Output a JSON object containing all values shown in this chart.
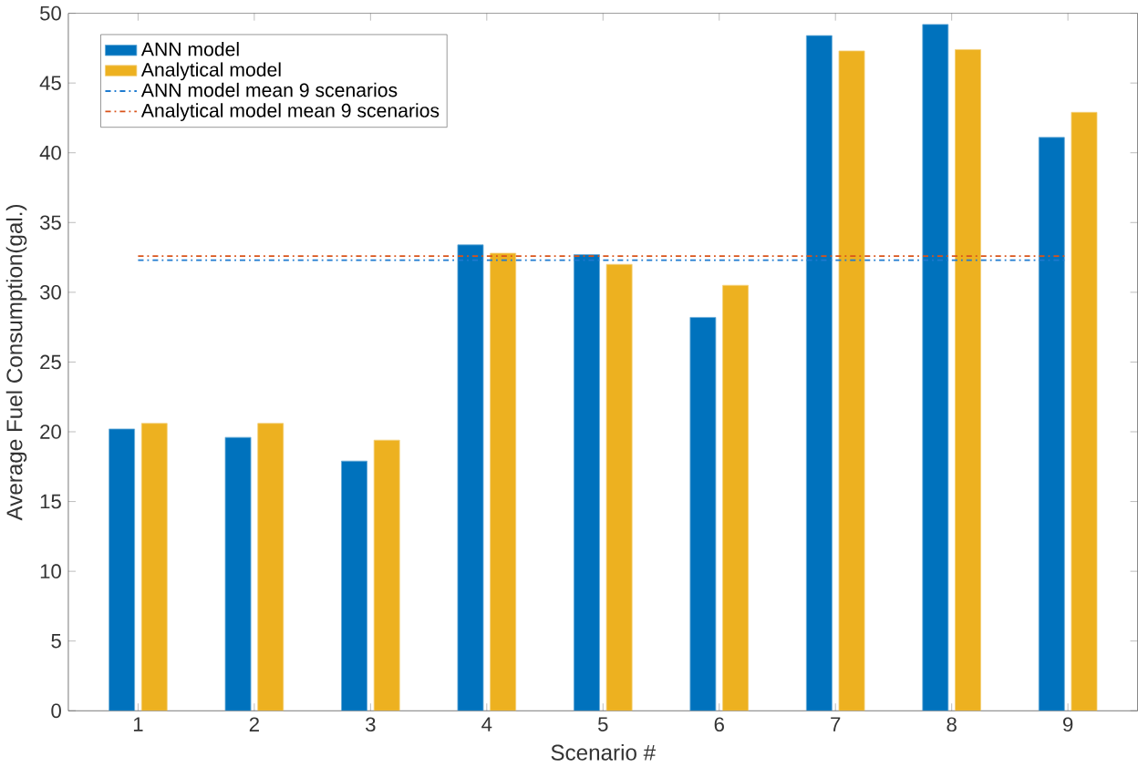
{
  "chart_data": {
    "type": "bar",
    "xlabel": "Scenario #",
    "ylabel": "Average Fuel Consumption(gal.)",
    "categories": [
      "1",
      "2",
      "3",
      "4",
      "5",
      "6",
      "7",
      "8",
      "9"
    ],
    "series": [
      {
        "name": "ANN model",
        "color": "#0072bd",
        "values": [
          20.2,
          19.6,
          17.9,
          33.4,
          32.7,
          28.2,
          48.4,
          49.2,
          41.1
        ]
      },
      {
        "name": "Analytical model",
        "color": "#edb120",
        "values": [
          20.6,
          20.6,
          19.4,
          32.8,
          32.0,
          30.5,
          47.3,
          47.4,
          42.9
        ]
      }
    ],
    "ref_lines": [
      {
        "axis": "y",
        "value": 32.3,
        "label": "ANN model mean 9 scenarios",
        "color": "#1f7bd0",
        "line_style": "dashdot"
      },
      {
        "axis": "y",
        "value": 32.6,
        "label": "Analytical model mean 9 scenarios",
        "color": "#d95319",
        "line_style": "dashdot"
      }
    ],
    "ylim": [
      0,
      50
    ],
    "yticks": [
      0,
      5,
      10,
      15,
      20,
      25,
      30,
      35,
      40,
      45,
      50
    ],
    "grid": false,
    "legend": "top left"
  }
}
